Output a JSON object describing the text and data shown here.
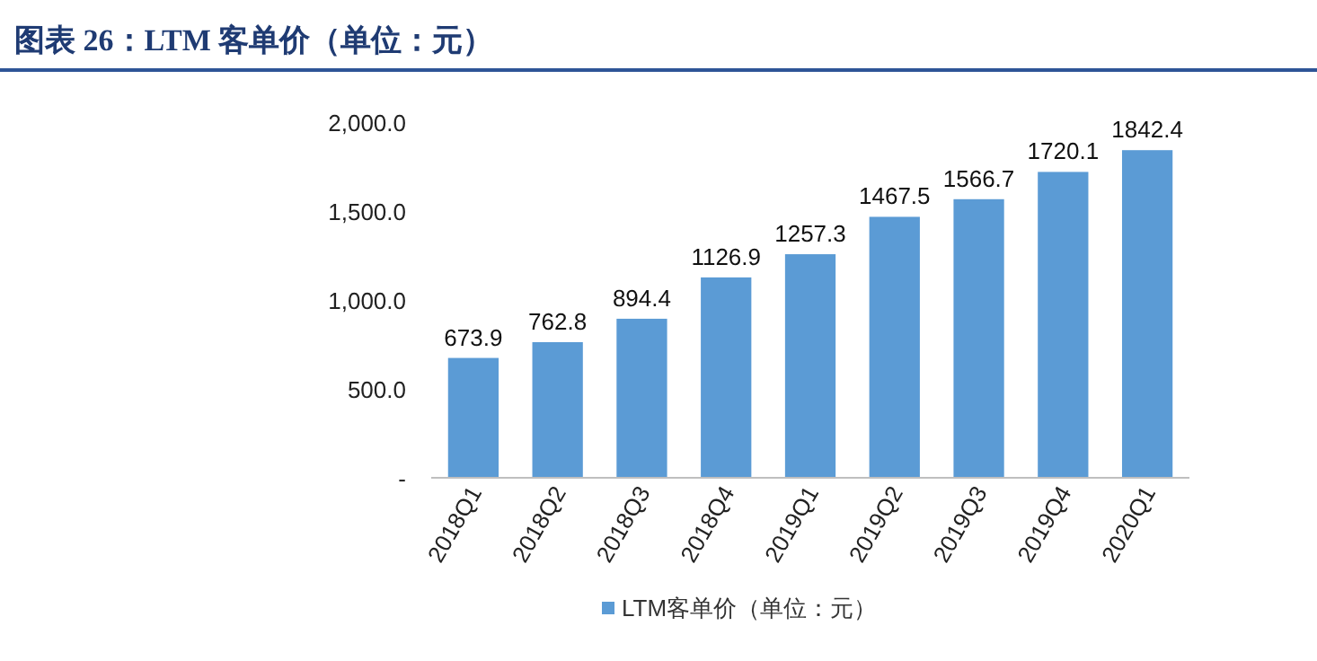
{
  "chart_data": {
    "type": "bar",
    "title": "图表 26：LTM 客单价（单位：元）",
    "categories": [
      "2018Q1",
      "2018Q2",
      "2018Q3",
      "2018Q4",
      "2019Q1",
      "2019Q2",
      "2019Q3",
      "2019Q4",
      "2020Q1"
    ],
    "series": [
      {
        "name": "LTM客单价（单位：元）",
        "color": "#5b9bd5",
        "values": [
          673.9,
          762.8,
          894.4,
          1126.9,
          1257.3,
          1467.5,
          1566.7,
          1720.1,
          1842.4
        ]
      }
    ],
    "ylim": [
      0,
      2000
    ],
    "yticks": [
      {
        "value": 0,
        "label": "-"
      },
      {
        "value": 500,
        "label": "500.0"
      },
      {
        "value": 1000,
        "label": "1,000.0"
      },
      {
        "value": 1500,
        "label": "1,500.0"
      },
      {
        "value": 2000,
        "label": "2,000.0"
      }
    ],
    "data_labels": true,
    "legend": "bottom",
    "grid": false
  }
}
